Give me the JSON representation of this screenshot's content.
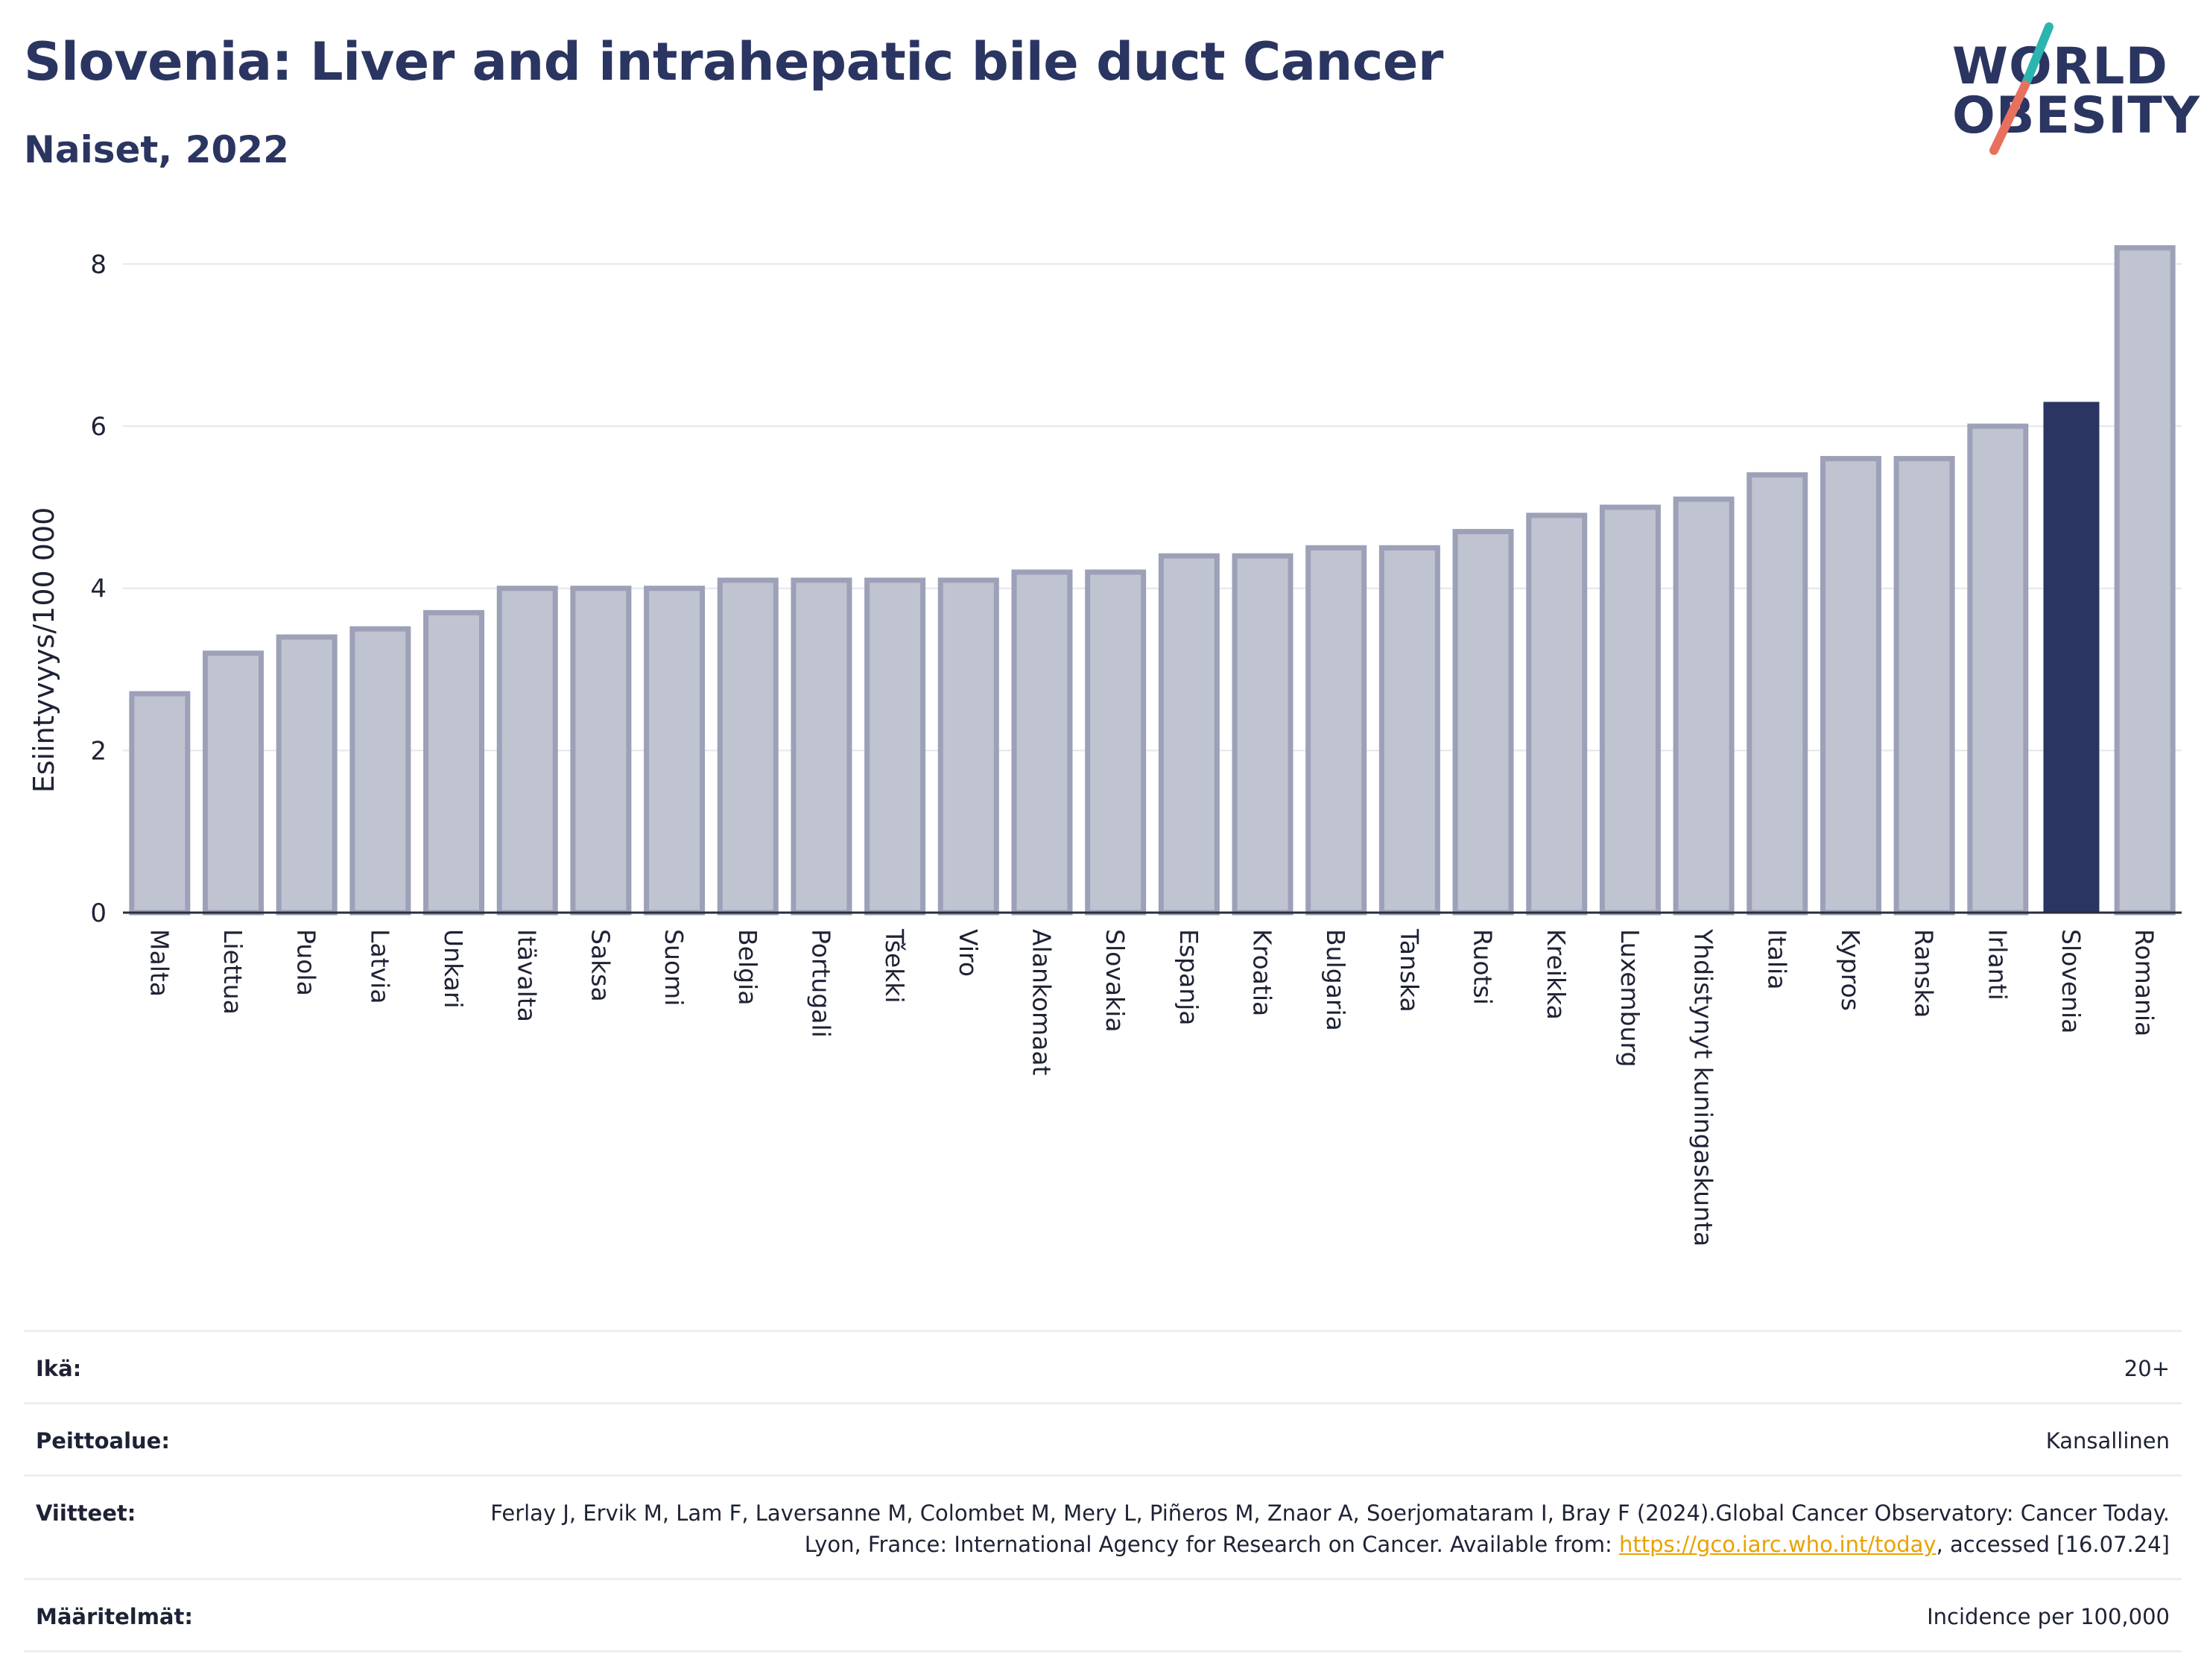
{
  "header": {
    "title": "Slovenia: Liver and intrahepatic bile duct Cancer",
    "subtitle": "Naiset, 2022"
  },
  "logo": {
    "line1": "WORLD",
    "line2": "OBESITY",
    "colors": {
      "text": "#2b3561",
      "slash_top": "#2bb5b0",
      "slash_bottom": "#e8705f"
    }
  },
  "chart_data": {
    "type": "bar",
    "ylabel": "Esiintyvyys/100 000",
    "xlabel": "",
    "ylim": [
      0,
      8.5
    ],
    "yticks": [
      0,
      2,
      4,
      6,
      8
    ],
    "grid": true,
    "highlight": "Slovenia",
    "colors": {
      "bar": "#c0c3d0",
      "bar_edge": "#9ca1b8",
      "highlight": "#2b3561"
    },
    "categories": [
      "Malta",
      "Liettua",
      "Puola",
      "Latvia",
      "Unkari",
      "Itävalta",
      "Saksa",
      "Suomi",
      "Belgia",
      "Portugali",
      "Tšekki",
      "Viro",
      "Alankomaat",
      "Slovakia",
      "Espanja",
      "Kroatia",
      "Bulgaria",
      "Tanska",
      "Ruotsi",
      "Kreikka",
      "Luxemburg",
      "Yhdistynyt kuningaskunta",
      "Italia",
      "Kypros",
      "Ranska",
      "Irlanti",
      "Slovenia",
      "Romania"
    ],
    "values": [
      2.7,
      3.2,
      3.4,
      3.5,
      3.7,
      4.0,
      4.0,
      4.0,
      4.1,
      4.1,
      4.1,
      4.1,
      4.2,
      4.2,
      4.4,
      4.4,
      4.5,
      4.5,
      4.7,
      4.9,
      5.0,
      5.1,
      5.4,
      5.6,
      5.6,
      6.0,
      6.3,
      8.2
    ]
  },
  "info": {
    "age_label": "Ikä:",
    "age_value": "20+",
    "coverage_label": "Peittoalue:",
    "coverage_value": "Kansallinen",
    "refs_label": "Viitteet:",
    "refs_text1": "Ferlay J, Ervik M, Lam F, Laversanne M, Colombet M, Mery L, Piñeros M, Znaor A, Soerjomataram I, Bray F (2024).Global Cancer Observatory: Cancer Today. Lyon, France: International Agency for Research on Cancer. Available from: ",
    "refs_link": "https://gco.iarc.who.int/today",
    "refs_text2": ", accessed [16.07.24]",
    "defs_label": "Määritelmät:",
    "defs_value": "Incidence per 100,000"
  }
}
